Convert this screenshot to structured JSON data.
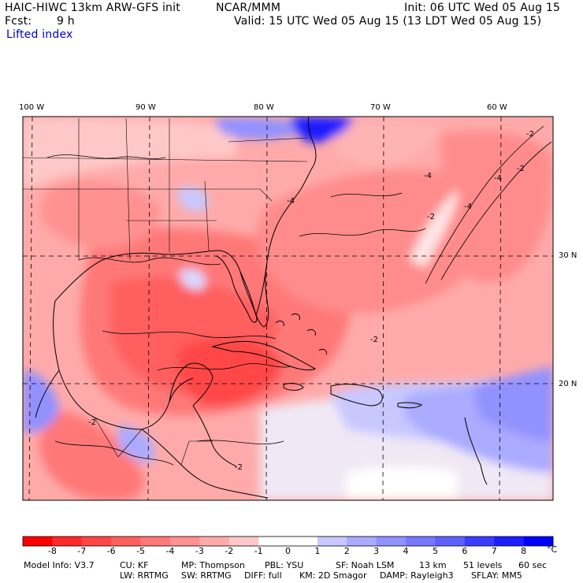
{
  "header": {
    "model_line": "HAIC-HIWC 13km ARW-GFS init",
    "org": "NCAR/MMM",
    "init": "Init: 06 UTC Wed 05 Aug 15",
    "fcst_label": "Fcst:",
    "fcst_value": "9 h",
    "valid": "Valid: 15 UTC Wed 05 Aug 15 (13 LDT Wed 05 Aug 15)",
    "field": "Lifted index"
  },
  "map": {
    "lon_labels": [
      "100 W",
      "90 W",
      "80 W",
      "70 W",
      "60 W"
    ],
    "lat_labels": [
      "30 N",
      "20 N"
    ],
    "contour_labels": [
      "-2",
      "-4",
      "-4",
      "-2",
      "-4",
      "-4",
      "-2",
      "-2",
      "-2",
      "-2"
    ],
    "colors": {
      "border": "#000000",
      "grid": "#000000",
      "coast": "#000000"
    }
  },
  "colorbar": {
    "labels": [
      "-8",
      "-7",
      "-6",
      "-5",
      "-4",
      "-3",
      "-2",
      "-1",
      "0",
      "1",
      "2",
      "3",
      "4",
      "5",
      "6",
      "7",
      "8"
    ],
    "unit": "°C",
    "colors": [
      "#ff0000",
      "#ff2a2a",
      "#ff4646",
      "#ff5f5f",
      "#ff7878",
      "#ff9191",
      "#ffaaaa",
      "#ffc8c8",
      "#ffffff",
      "#ffffff",
      "#c8c8ff",
      "#aaaaff",
      "#9191ff",
      "#7878ff",
      "#5f5fff",
      "#3c3cff",
      "#1e1eff",
      "#0000ff"
    ]
  },
  "footer": {
    "line1": [
      "Model Info: V3.7",
      "CU: KF",
      "MP: Thompson",
      "PBL: YSU",
      "SF: Noah LSM",
      "13 km",
      "51 levels",
      "60 sec"
    ],
    "line2": [
      "LW: RRTMG",
      "SW: RRTMG",
      "DIFF: full",
      "KM: 2D Smagor",
      "DAMP: Rayleigh3",
      "SFLAY: MM5"
    ]
  }
}
